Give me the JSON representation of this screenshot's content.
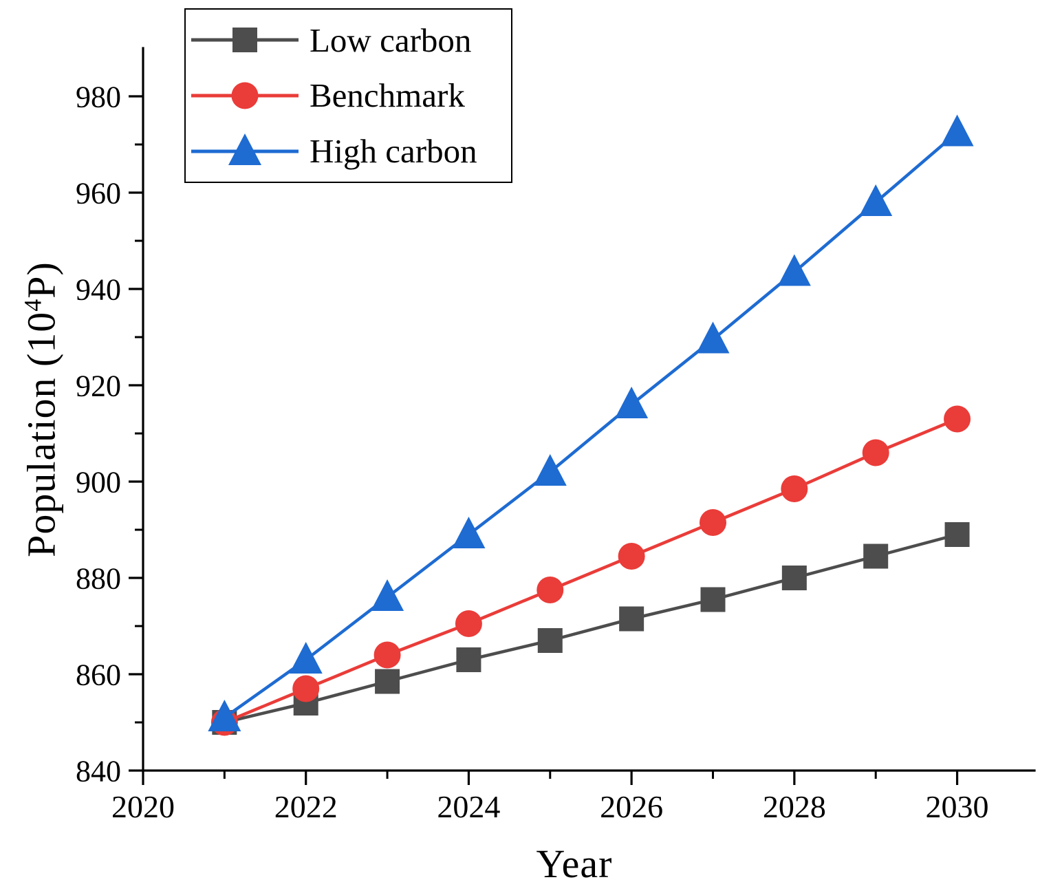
{
  "figure": {
    "background": "#FFFFFF",
    "axis_color": "#000000",
    "text_color": "#000000"
  },
  "chart_data": {
    "type": "line",
    "title": "",
    "xlabel": "Year",
    "ylabel": {
      "pre": "Population (10",
      "sup": "4",
      "post": "P)"
    },
    "x": [
      2021,
      2022,
      2023,
      2024,
      2025,
      2026,
      2027,
      2028,
      2029,
      2030
    ],
    "xlim": [
      2020,
      2030.95
    ],
    "ylim": [
      840,
      990
    ],
    "x_major_ticks": [
      2020,
      2022,
      2024,
      2026,
      2028,
      2030
    ],
    "x_minor_ticks": [
      2021,
      2023,
      2025,
      2027,
      2029
    ],
    "y_major_ticks": [
      840,
      860,
      880,
      900,
      920,
      940,
      960,
      980
    ],
    "y_minor_ticks": [
      850,
      870,
      890,
      910,
      930,
      950,
      970
    ],
    "grid": false,
    "legend_position": "top-left",
    "series": [
      {
        "name": "Low carbon",
        "color": "#4D4D4D",
        "marker": "square",
        "values": [
          850,
          854,
          858.5,
          863,
          867,
          871.5,
          875.5,
          880,
          884.5,
          889
        ]
      },
      {
        "name": "Benchmark",
        "color": "#EA3C39",
        "marker": "circle",
        "values": [
          850,
          857,
          864,
          870.5,
          877.5,
          884.5,
          891.5,
          898.5,
          906,
          913
        ]
      },
      {
        "name": "High carbon",
        "color": "#1E6BD2",
        "marker": "triangle",
        "values": [
          851,
          863,
          876,
          889,
          902,
          916,
          929.5,
          943.5,
          958,
          972.5
        ]
      }
    ]
  }
}
